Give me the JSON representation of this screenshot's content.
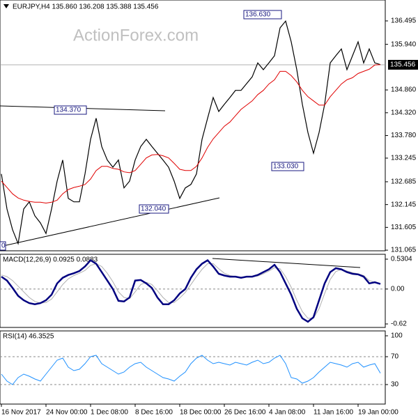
{
  "header": "EURJPY,H4  135.860 136.208 135.388 135.456",
  "watermark": "ActionForex.com",
  "chart_data": [
    {
      "type": "line",
      "xlim": [
        -0.25,
        68.875
      ],
      "ylim": [
        131.05,
        136.99
      ],
      "yticks": [
        136.495,
        {
          "value": 135.94,
          "label": "135.940"
        },
        {
          "value": 134.86,
          "label": "134.860"
        },
        {
          "value": 134.32,
          "label": "134.320"
        },
        {
          "value": 133.78,
          "label": "133.780"
        },
        133.245,
        132.685,
        132.145,
        131.605,
        131.065
      ],
      "current_price": 135.456,
      "annotations": [
        "136.630",
        "134.370",
        "133.030",
        "132.040",
        "0"
      ],
      "series": [
        {
          "color": "#000000",
          "values": [
            132.87,
            132.04,
            131.55,
            131.22,
            132.04,
            132.21,
            131.88,
            131.71,
            131.46,
            132.04,
            132.7,
            133.2,
            132.29,
            132.21,
            132.21,
            132.87,
            133.69,
            134.19,
            133.52,
            133.2,
            133.03,
            133.2,
            132.54,
            132.7,
            133.2,
            133.52,
            133.69,
            133.52,
            133.36,
            133.2,
            133.03,
            132.7,
            132.29,
            132.54,
            132.62,
            132.87,
            133.69,
            134.19,
            134.68,
            134.35,
            134.52,
            134.68,
            134.85,
            134.85,
            135.01,
            135.17,
            135.5,
            135.34,
            135.5,
            135.67,
            136.33,
            136.49,
            136.0,
            135.34,
            134.52,
            133.85,
            133.36,
            133.85,
            134.52,
            135.5,
            135.67,
            135.83,
            135.34,
            135.67,
            136.0,
            135.5,
            135.83,
            135.5,
            135.46
          ]
        },
        {
          "color": "#e00000",
          "values": [
            132.7,
            132.55,
            132.4,
            132.3,
            132.25,
            132.22,
            132.2,
            132.2,
            132.18,
            132.2,
            132.25,
            132.4,
            132.5,
            132.55,
            132.58,
            132.62,
            132.75,
            132.95,
            133.05,
            133.05,
            133.0,
            132.98,
            132.92,
            132.9,
            132.95,
            133.1,
            133.25,
            133.32,
            133.33,
            133.3,
            133.25,
            133.12,
            132.98,
            132.95,
            132.95,
            133.05,
            133.25,
            133.5,
            133.7,
            133.85,
            134.0,
            134.1,
            134.25,
            134.4,
            134.5,
            134.6,
            134.75,
            134.85,
            135.0,
            135.1,
            135.3,
            135.3,
            135.2,
            135.05,
            134.85,
            134.7,
            134.6,
            134.5,
            134.5,
            134.7,
            134.85,
            135.0,
            135.1,
            135.15,
            135.25,
            135.3,
            135.35,
            135.45,
            135.46
          ]
        }
      ]
    },
    {
      "type": "line",
      "title": "MACD(12,26,9) 0.0925 0.0883",
      "xlim": [
        -0.25,
        68.875
      ],
      "ylim": [
        -0.682,
        0.617
      ],
      "yticks": [
        0.5304,
        {
          "value": 0,
          "label": "0.00"
        },
        -0.62
      ],
      "dashed_lines": [
        0
      ],
      "series": [
        {
          "color": "#b0b0b0",
          "values": [
            0.25,
            0.22,
            0.15,
            0.05,
            -0.05,
            -0.15,
            -0.22,
            -0.25,
            -0.24,
            -0.18,
            -0.05,
            0.08,
            0.18,
            0.24,
            0.28,
            0.33,
            0.42,
            0.45,
            0.4,
            0.28,
            0.13,
            -0.05,
            -0.15,
            -0.17,
            -0.05,
            0.08,
            0.12,
            0.08,
            -0.03,
            -0.15,
            -0.24,
            -0.24,
            -0.16,
            -0.06,
            0.08,
            0.22,
            0.35,
            0.45,
            0.45,
            0.36,
            0.28,
            0.24,
            0.22,
            0.21,
            0.21,
            0.22,
            0.23,
            0.27,
            0.32,
            0.38,
            0.36,
            0.22,
            0.03,
            -0.2,
            -0.4,
            -0.52,
            -0.52,
            -0.35,
            -0.08,
            0.17,
            0.31,
            0.35,
            0.32,
            0.29,
            0.27,
            0.24,
            0.15,
            0.12,
            0.09
          ]
        },
        {
          "color": "#000080",
          "values": [
            0.22,
            0.15,
            0.02,
            -0.12,
            -0.2,
            -0.25,
            -0.27,
            -0.25,
            -0.2,
            -0.1,
            0.1,
            0.2,
            0.25,
            0.28,
            0.32,
            0.4,
            0.51,
            0.45,
            0.3,
            0.15,
            0.0,
            -0.21,
            -0.22,
            -0.15,
            0.15,
            0.16,
            0.1,
            0.02,
            -0.15,
            -0.27,
            -0.27,
            -0.2,
            -0.08,
            0.0,
            0.2,
            0.35,
            0.45,
            0.51,
            0.4,
            0.27,
            0.24,
            0.22,
            0.22,
            0.2,
            0.22,
            0.22,
            0.25,
            0.3,
            0.35,
            0.43,
            0.3,
            0.1,
            -0.1,
            -0.35,
            -0.52,
            -0.58,
            -0.5,
            -0.2,
            0.1,
            0.3,
            0.37,
            0.35,
            0.3,
            0.27,
            0.26,
            0.22,
            0.1,
            0.12,
            0.09
          ]
        }
      ]
    },
    {
      "type": "line",
      "title": "RSI(14) 46.3525",
      "xlim": [
        -0.25,
        68.875
      ],
      "ylim": [
        2,
        107
      ],
      "yticks": [
        100,
        70,
        30
      ],
      "dashed_lines": [
        70,
        30
      ],
      "xticks": [
        {
          "value": 0,
          "label": "16 Nov 2017"
        },
        {
          "value": 8,
          "label": "24 Nov 00:00"
        },
        {
          "value": 16,
          "label": "1 Dec 08:00"
        },
        {
          "value": 24,
          "label": "8 Dec 16:00"
        },
        {
          "value": 32,
          "label": "18 Dec 00:00"
        },
        {
          "value": 40,
          "label": "26 Dec 16:00"
        },
        {
          "value": 48,
          "label": "4 Jan 08:00"
        },
        {
          "value": 56,
          "label": "11 Jan 16:00"
        },
        {
          "value": 64,
          "label": "19 Jan 00:00"
        }
      ],
      "series": [
        {
          "color": "#1e90ff",
          "values": [
            45,
            35,
            30,
            40,
            45,
            42,
            38,
            35,
            45,
            55,
            65,
            68,
            55,
            50,
            52,
            60,
            70,
            72,
            60,
            55,
            50,
            45,
            48,
            55,
            60,
            62,
            55,
            50,
            45,
            40,
            38,
            35,
            42,
            48,
            60,
            68,
            72,
            65,
            60,
            62,
            60,
            58,
            62,
            60,
            58,
            62,
            65,
            60,
            62,
            68,
            72,
            60,
            40,
            38,
            32,
            35,
            40,
            48,
            55,
            62,
            60,
            58,
            55,
            60,
            62,
            55,
            58,
            60,
            46.35
          ]
        }
      ]
    }
  ]
}
